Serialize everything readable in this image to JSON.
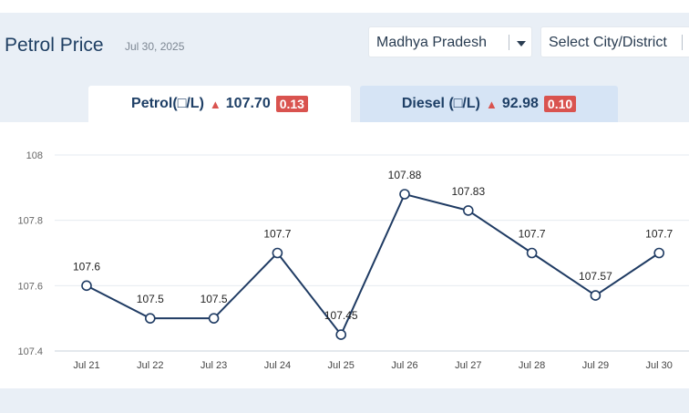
{
  "header": {
    "title": "Petrol Price",
    "date": "Jul 30, 2025"
  },
  "filters": {
    "state_value": "Madhya Pradesh",
    "city_placeholder": "Select City/District"
  },
  "tabs": [
    {
      "fuel": "Petrol",
      "unit": "(□/L)",
      "price": "107.70",
      "change": "0.13",
      "active": true
    },
    {
      "fuel": "Diesel",
      "unit": "(□/L)",
      "price": "92.98",
      "change": "0.10",
      "active": false
    }
  ],
  "colors": {
    "line": "#1f3b63",
    "increase": "#d9534f",
    "active_tab": "#ffffff",
    "inactive_tab": "#d6e4f5"
  },
  "chart_data": {
    "type": "line",
    "categories": [
      "Jul 21",
      "Jul 22",
      "Jul 23",
      "Jul 24",
      "Jul 25",
      "Jul 26",
      "Jul 27",
      "Jul 28",
      "Jul 29",
      "Jul 30"
    ],
    "values": [
      107.6,
      107.5,
      107.5,
      107.7,
      107.45,
      107.88,
      107.83,
      107.7,
      107.57,
      107.7
    ],
    "data_labels": [
      "107.6",
      "107.5",
      "107.5",
      "107.7",
      "107.45",
      "107.88",
      "107.83",
      "107.7",
      "107.57",
      "107.7"
    ],
    "yticks": [
      "107.4",
      "107.6",
      "107.8",
      "108"
    ],
    "ytick_values": [
      107.4,
      107.6,
      107.8,
      108
    ],
    "ylim": [
      107.4,
      108
    ],
    "grid": true,
    "title": "",
    "xlabel": "",
    "ylabel": ""
  }
}
